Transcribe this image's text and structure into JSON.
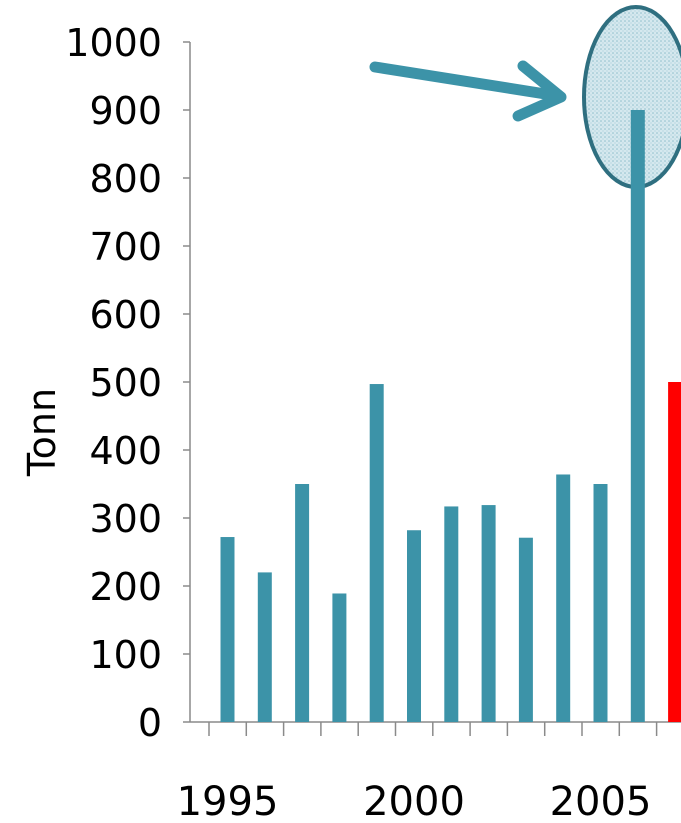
{
  "chart_data": {
    "type": "bar",
    "ylabel": "Tonn",
    "ylim": [
      0,
      1000
    ],
    "yticks": [
      "0",
      "100",
      "200",
      "300",
      "400",
      "500",
      "600",
      "700",
      "800",
      "900",
      "1000"
    ],
    "xtick_labels": [
      "1995",
      "2000",
      "2005"
    ],
    "x": [
      1995,
      1996,
      1997,
      1998,
      1999,
      2000,
      2001,
      2002,
      2003,
      2004,
      2005,
      2006,
      2007
    ],
    "values": [
      272,
      220,
      350,
      189,
      497,
      282,
      317,
      319,
      271,
      364,
      350,
      900,
      500
    ],
    "colors": {
      "bar": "#3C93A8",
      "highlight_bar": "#FF0000",
      "annotation": "#3C93A8",
      "ellipse_fill": "#D5E8EE",
      "ellipse_stroke": "#2F6F80"
    },
    "highlighted_index": 12,
    "annotation": {
      "type": "arrow-and-ellipse",
      "target_index": 11
    }
  }
}
